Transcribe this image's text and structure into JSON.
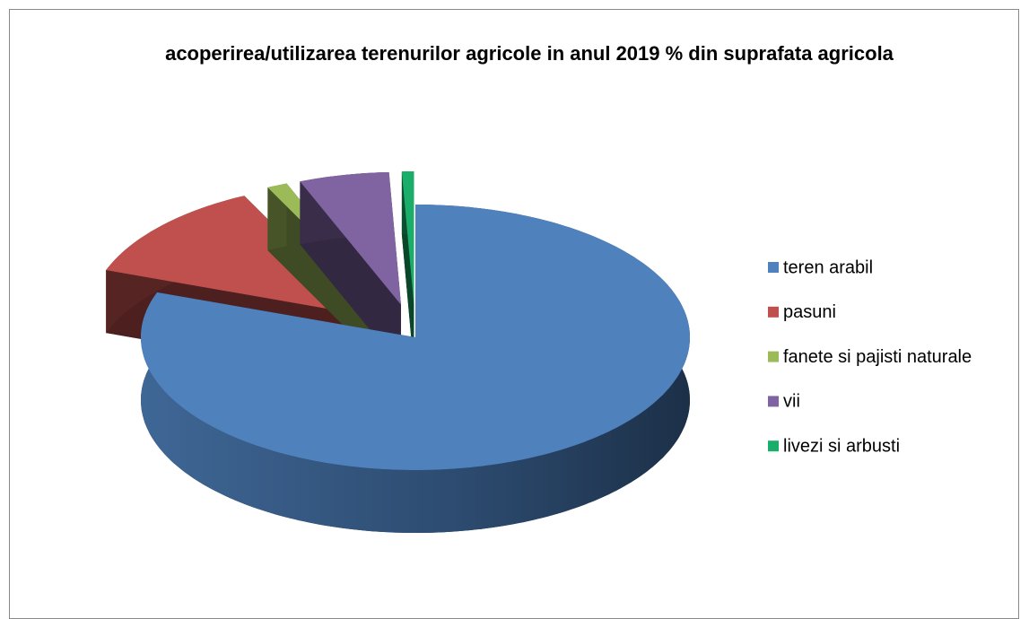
{
  "chart_data": {
    "type": "pie3d",
    "title": "acoperirea/utilizarea terenurilor agricole in anul 2019 % din suprafata agricola",
    "categories": [
      "teren arabil",
      "pasuni",
      "fanete si pajisti naturale",
      "vii",
      "livezi si arbusti"
    ],
    "values": [
      80.5,
      12.3,
      1.2,
      5.3,
      0.7
    ],
    "colors": [
      "#4f81bd",
      "#c0504d",
      "#9bbb59",
      "#8064a2",
      "#1aae6a"
    ],
    "legend": "right"
  }
}
